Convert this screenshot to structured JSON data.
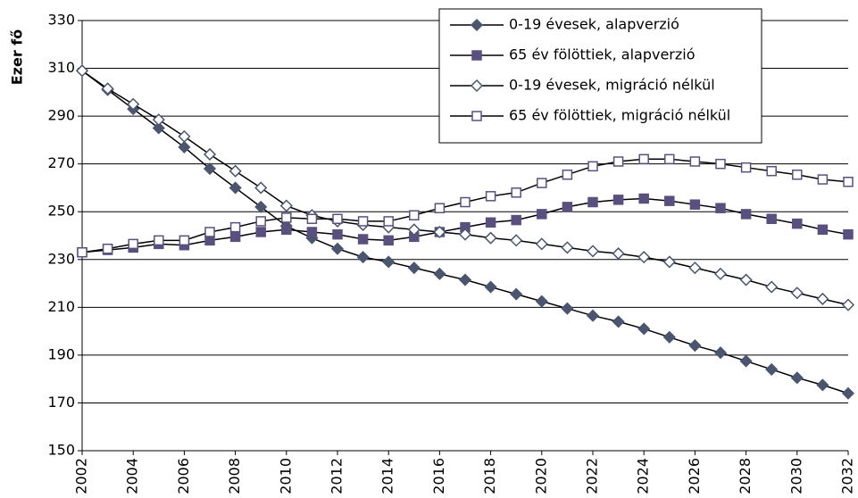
{
  "chart_data": {
    "type": "line",
    "y_label": "Ezer fő",
    "x": [
      2002,
      2003,
      2004,
      2005,
      2006,
      2007,
      2008,
      2009,
      2010,
      2011,
      2012,
      2013,
      2014,
      2015,
      2016,
      2017,
      2018,
      2019,
      2020,
      2021,
      2022,
      2023,
      2024,
      2025,
      2026,
      2027,
      2028,
      2029,
      2030,
      2031,
      2032
    ],
    "xlim": [
      2002,
      2032
    ],
    "xticks": [
      2002,
      2004,
      2006,
      2008,
      2010,
      2012,
      2014,
      2016,
      2018,
      2020,
      2022,
      2024,
      2026,
      2028,
      2030,
      2032
    ],
    "ylim": [
      150,
      330
    ],
    "yticks": [
      150,
      170,
      190,
      210,
      230,
      250,
      270,
      290,
      310,
      330
    ],
    "grid": true,
    "legend": "top-right",
    "line_color": "#000000",
    "series": [
      {
        "name": "0-19 évesek, alapverzió",
        "color": "#4a5670",
        "marker": "diamond",
        "filled": true,
        "values": [
          309,
          301,
          293,
          285,
          277,
          268,
          260,
          252,
          244,
          239,
          234.5,
          231,
          229,
          226.5,
          224,
          221.5,
          218.5,
          215.5,
          212.5,
          209.5,
          206.5,
          204,
          201,
          197.5,
          194,
          191,
          187.5,
          184,
          180.5,
          177.5,
          174
        ]
      },
      {
        "name": "65 év fölöttiek, alapverzió",
        "color": "#5a5080",
        "marker": "square",
        "filled": true,
        "values": [
          233,
          234,
          235,
          236.5,
          236,
          238,
          239.5,
          241.5,
          242.5,
          241.5,
          240.5,
          238.5,
          238,
          239.5,
          241.5,
          243.5,
          245.5,
          246.5,
          249,
          252,
          254,
          255,
          255.5,
          254.5,
          253,
          251.5,
          249,
          247,
          245,
          242.5,
          240.5
        ]
      },
      {
        "name": "0-19 évesek, migráció nélkül",
        "color": "#4a5670",
        "marker": "diamond",
        "filled": false,
        "values": [
          309,
          301.5,
          295,
          288.5,
          281.5,
          274,
          267,
          260,
          252.5,
          248.5,
          246,
          244.5,
          243.5,
          242.5,
          241.5,
          240.5,
          239,
          238,
          236.5,
          235,
          233.5,
          232.5,
          231,
          229,
          226.5,
          224,
          221.5,
          218.5,
          216,
          213.5,
          211
        ]
      },
      {
        "name": "65 év fölöttiek, migráció nélkül",
        "color": "#5a5080",
        "marker": "square",
        "filled": false,
        "values": [
          233,
          234.5,
          236.5,
          238,
          238,
          241.5,
          243.5,
          246,
          247.5,
          247,
          247,
          246,
          246,
          248.5,
          251.5,
          254,
          256.5,
          258,
          262,
          265.5,
          269,
          271,
          272,
          272,
          271,
          270,
          268.5,
          267,
          265.5,
          263.5,
          262.5
        ]
      }
    ]
  }
}
